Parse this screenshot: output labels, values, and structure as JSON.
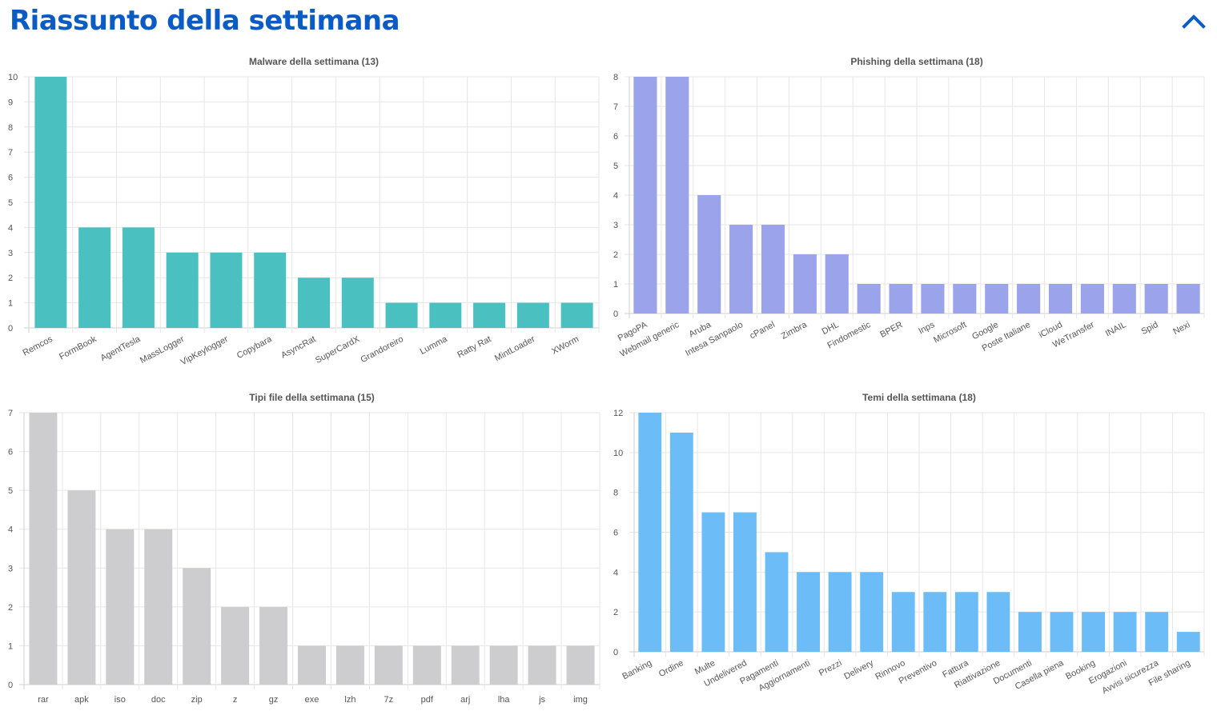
{
  "page": {
    "title": "Riassunto della settimana",
    "collapse_icon": "chevron-up-icon",
    "accent_color": "#0a5cc4"
  },
  "chart_data": [
    {
      "type": "bar",
      "title": "Malware della settimana (13)",
      "categories": [
        "Remcos",
        "FormBook",
        "AgentTesla",
        "MassLogger",
        "VipKeylogger",
        "Copybara",
        "AsyncRat",
        "SuperCardX",
        "Grandoreiro",
        "Lumma",
        "Ratty Rat",
        "MintLoader",
        "XWorm"
      ],
      "values": [
        10,
        4,
        4,
        3,
        3,
        3,
        2,
        2,
        1,
        1,
        1,
        1,
        1
      ],
      "ylim": [
        0,
        10
      ],
      "yticks": [
        0,
        1,
        2,
        3,
        4,
        5,
        6,
        7,
        8,
        9,
        10
      ],
      "color": "#4bc0c0",
      "rotated_labels": true,
      "grid": true
    },
    {
      "type": "bar",
      "title": "Phishing della settimana (18)",
      "categories": [
        "PagoPA",
        "Webmail generic",
        "Aruba",
        "Intesa Sanpaolo",
        "cPanel",
        "Zimbra",
        "DHL",
        "Findomestic",
        "BPER",
        "Inps",
        "Microsoft",
        "Google",
        "Poste Italiane",
        "iCloud",
        "WeTransfer",
        "INAIL",
        "Spid",
        "Nexi"
      ],
      "values": [
        8,
        8,
        4,
        3,
        3,
        2,
        2,
        1,
        1,
        1,
        1,
        1,
        1,
        1,
        1,
        1,
        1,
        1
      ],
      "ylim": [
        0,
        8
      ],
      "yticks": [
        0,
        1,
        2,
        3,
        4,
        5,
        6,
        7,
        8
      ],
      "color": "#9ba3eb",
      "rotated_labels": true,
      "grid": true
    },
    {
      "type": "bar",
      "title": "Tipi file della settimana (15)",
      "categories": [
        "rar",
        "apk",
        "iso",
        "doc",
        "zip",
        "z",
        "gz",
        "exe",
        "lzh",
        "7z",
        "pdf",
        "arj",
        "lha",
        "js",
        "img"
      ],
      "values": [
        7,
        5,
        4,
        4,
        3,
        2,
        2,
        1,
        1,
        1,
        1,
        1,
        1,
        1,
        1
      ],
      "ylim": [
        0,
        7
      ],
      "yticks": [
        0,
        1,
        2,
        3,
        4,
        5,
        6,
        7
      ],
      "color": "#cdcdcf",
      "rotated_labels": false,
      "grid": true
    },
    {
      "type": "bar",
      "title": "Temi della settimana (18)",
      "categories": [
        "Banking",
        "Ordine",
        "Multe",
        "Undelivered",
        "Pagamenti",
        "Aggiornamenti",
        "Prezzi",
        "Delivery",
        "Rinnovo",
        "Preventivo",
        "Fattura",
        "Riattivazione",
        "Documenti",
        "Casella piena",
        "Booking",
        "Erogazioni",
        "Avvisi sicurezza",
        "File sharing"
      ],
      "values": [
        12,
        11,
        7,
        7,
        5,
        4,
        4,
        4,
        3,
        3,
        3,
        3,
        2,
        2,
        2,
        2,
        2,
        1
      ],
      "ylim": [
        0,
        12
      ],
      "yticks": [
        0,
        2,
        4,
        6,
        8,
        10,
        12
      ],
      "color": "#6cbdf7",
      "rotated_labels": true,
      "grid": true
    }
  ]
}
